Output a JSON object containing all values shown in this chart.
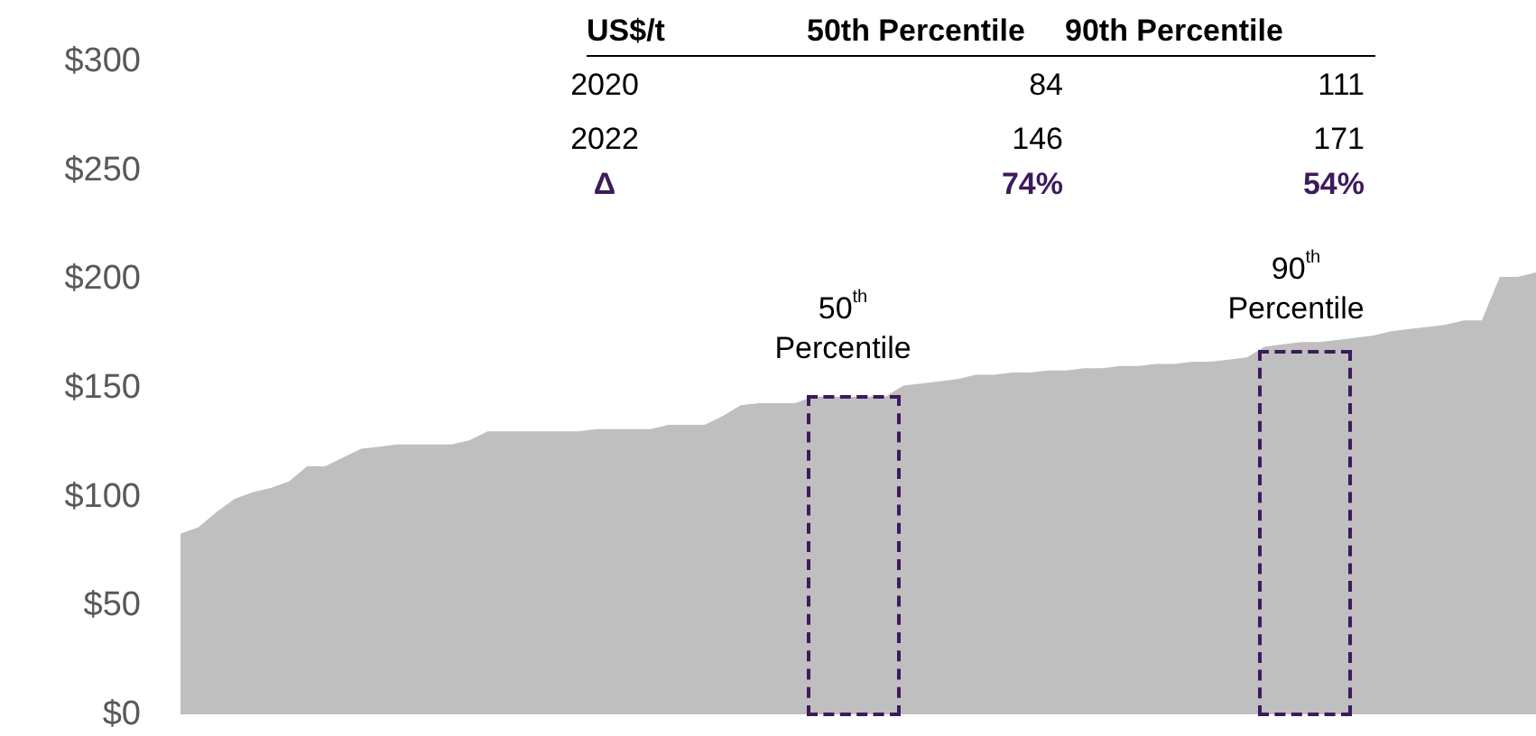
{
  "chart_data": {
    "type": "area",
    "categories": [
      null,
      null,
      null,
      null,
      null,
      null,
      null,
      null,
      null,
      null,
      null,
      null,
      null,
      null,
      null,
      null,
      null,
      null,
      null,
      null,
      null,
      null,
      null,
      null,
      null,
      null,
      null,
      null,
      null,
      null,
      null,
      null,
      null,
      null,
      null,
      null,
      null,
      null,
      null,
      null,
      null,
      null,
      null,
      null,
      null,
      null,
      null,
      null,
      null,
      null,
      null,
      null,
      null,
      null,
      null,
      null,
      null,
      null,
      null,
      null,
      null,
      null,
      null,
      null,
      null,
      null,
      null,
      null,
      null,
      null,
      null,
      null,
      null,
      null,
      null,
      null
    ],
    "values": [
      83,
      86,
      93,
      99,
      102,
      104,
      107,
      114,
      114,
      118,
      122,
      123,
      124,
      124,
      124,
      124,
      126,
      130,
      130,
      130,
      130,
      130,
      130,
      131,
      131,
      131,
      131,
      133,
      133,
      133,
      137,
      142,
      143,
      143,
      143,
      146,
      146,
      146,
      146,
      146,
      151,
      152,
      153,
      154,
      156,
      156,
      157,
      157,
      158,
      158,
      159,
      159,
      160,
      160,
      161,
      161,
      162,
      162,
      163,
      164,
      169,
      170,
      171,
      171,
      172,
      173,
      174,
      176,
      177,
      178,
      179,
      181,
      181,
      201,
      201,
      203
    ],
    "color": "#bfbfbf",
    "ylim": [
      0,
      300
    ],
    "yticks": [
      {
        "value": 0,
        "label": "$0"
      },
      {
        "value": 50,
        "label": "$50"
      },
      {
        "value": 100,
        "label": "$100"
      },
      {
        "value": 150,
        "label": "$150"
      },
      {
        "value": 200,
        "label": "$200"
      },
      {
        "value": 250,
        "label": "$250"
      },
      {
        "value": 300,
        "label": "$300"
      }
    ],
    "tick_labels": "y",
    "grid": false,
    "annotations": [
      "US$/t",
      "50th Percentile",
      "90th Percentile",
      "2020",
      "84",
      "111",
      "2022",
      "146",
      "171",
      "Δ",
      "74%",
      "54%",
      "50$^{th}$\nPercentile",
      "90$^{th}$\nPercentile"
    ]
  }
}
